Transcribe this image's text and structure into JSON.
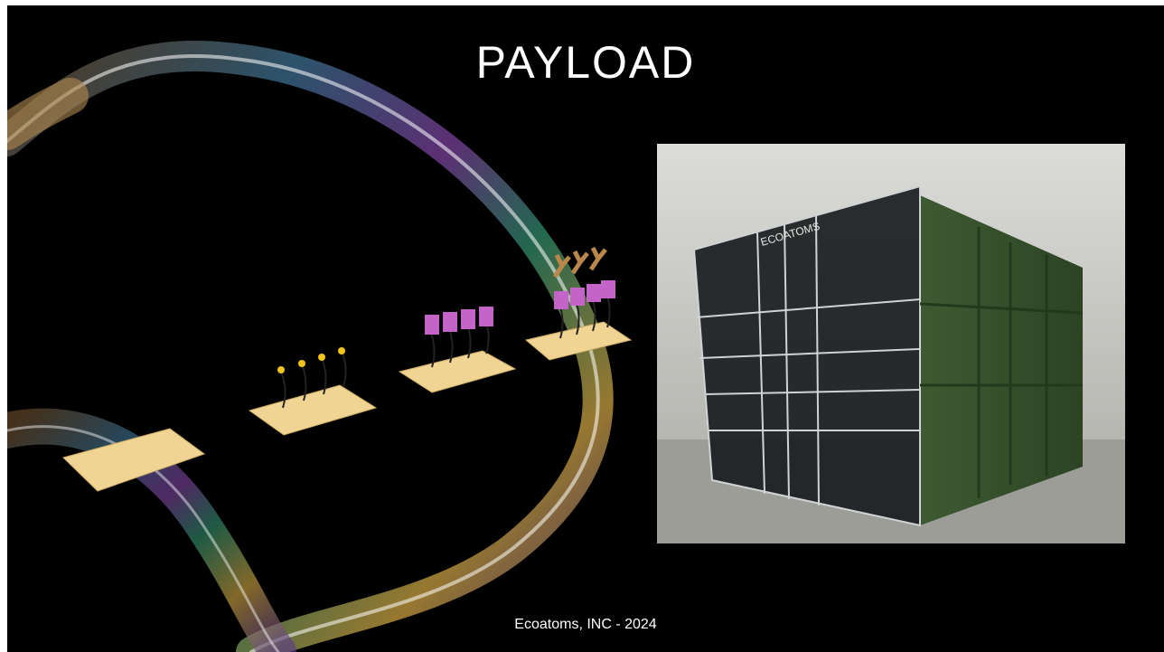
{
  "slide": {
    "title": "PAYLOAD",
    "photo": {
      "label": "ECOATOMS"
    },
    "footer": "Ecoatoms, INC - 2024"
  }
}
